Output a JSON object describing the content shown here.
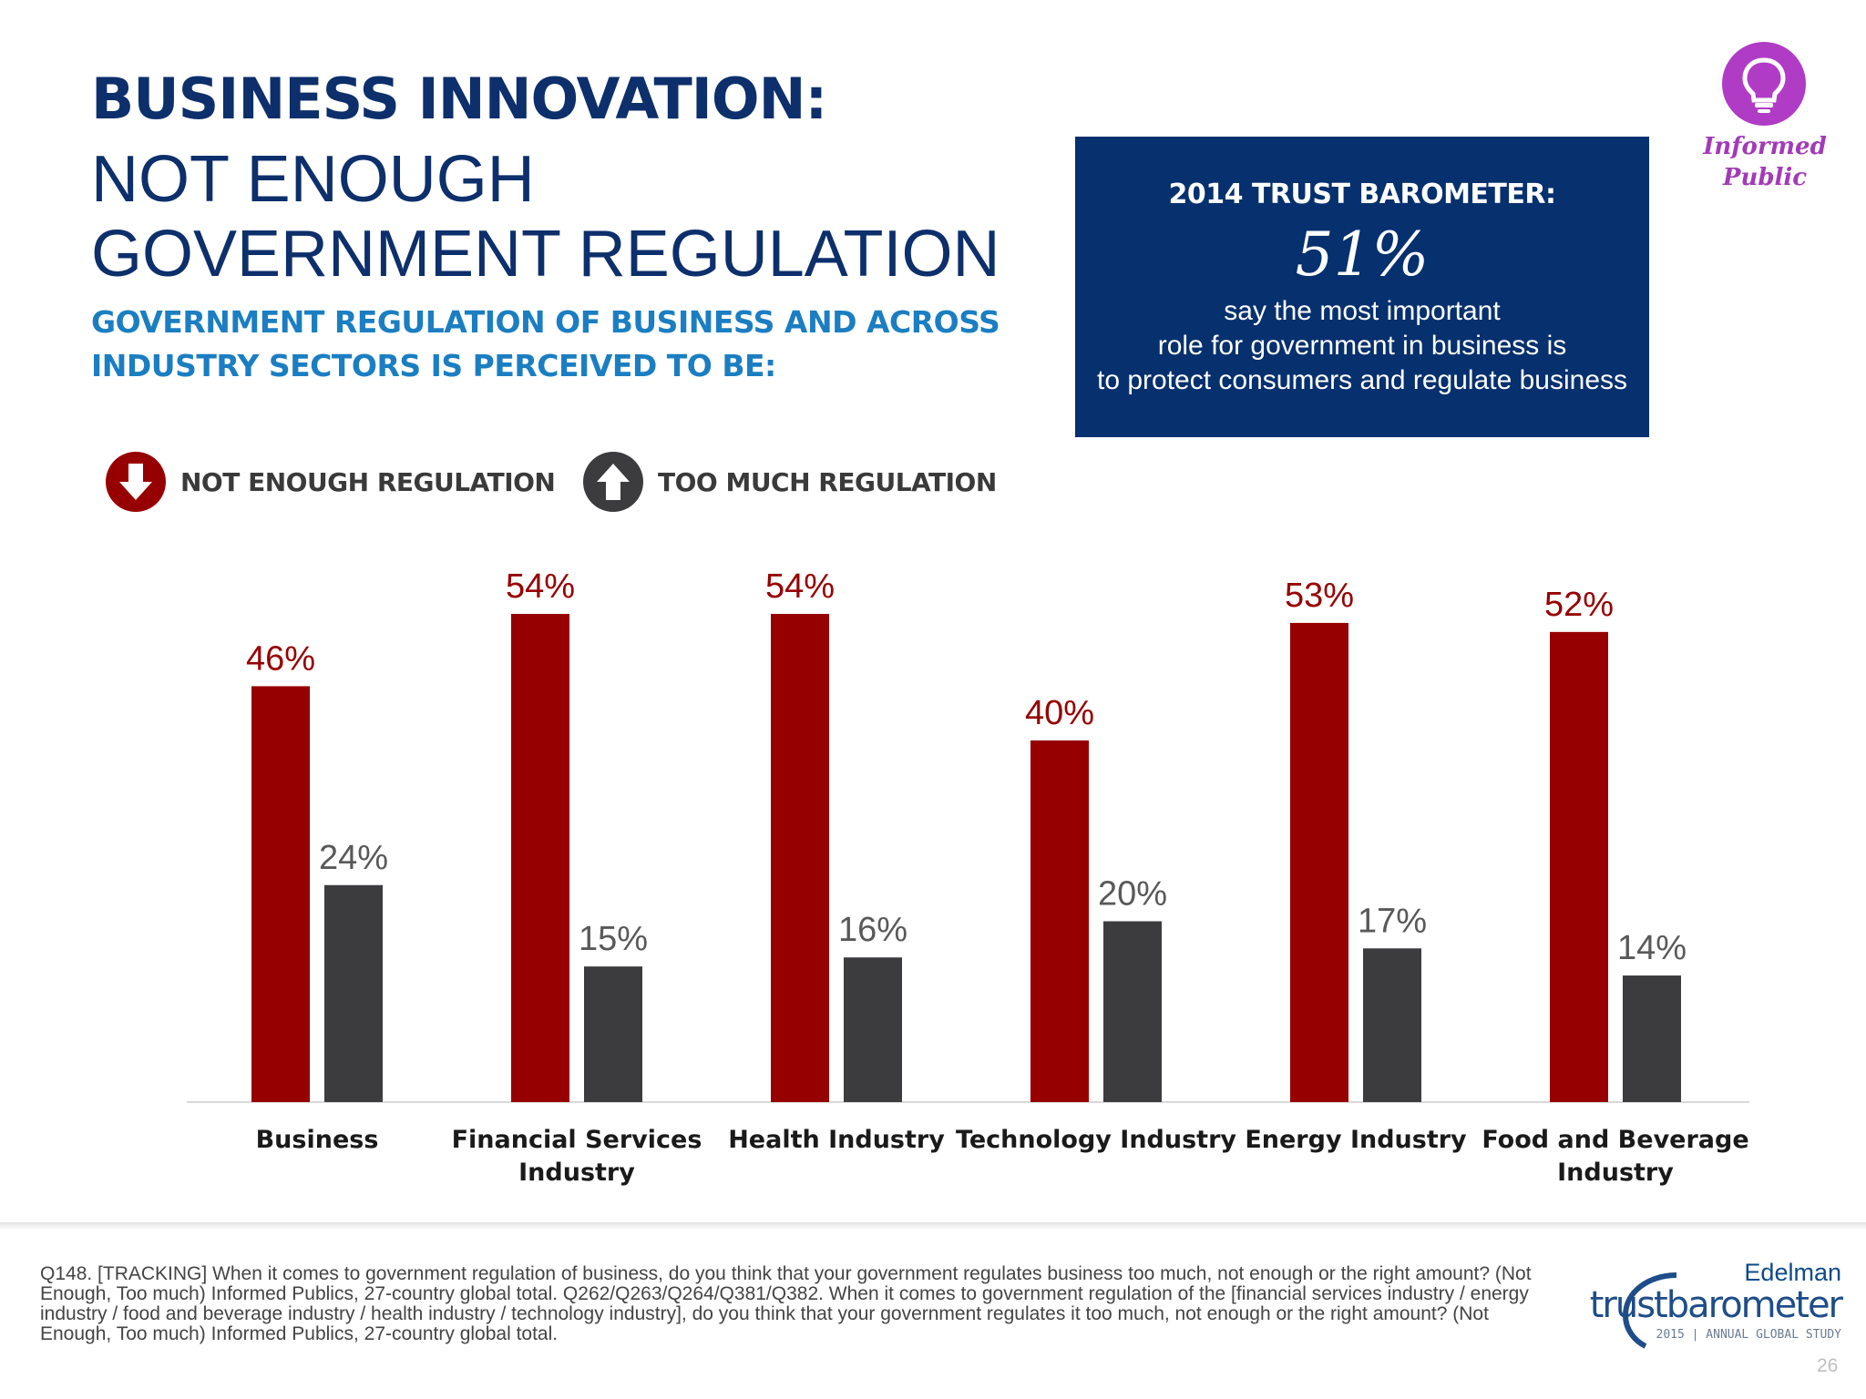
{
  "header": {
    "title_line1": "BUSINESS INNOVATION:",
    "title_line2": "NOT ENOUGH",
    "title_line3": "GOVERNMENT REGULATION",
    "subtitle_line1": "GOVERNMENT REGULATION OF BUSINESS AND ACROSS",
    "subtitle_line2": "INDUSTRY SECTORS IS PERCEIVED TO BE:"
  },
  "callout": {
    "heading": "2014 TRUST BAROMETER:",
    "value": "51%",
    "line1": "say the most important",
    "line2": "role for government in business is",
    "line3": "to protect consumers and regulate business"
  },
  "badge": {
    "line1": "Informed",
    "line2": "Public",
    "icon": "lightbulb-icon",
    "color": "#b03cc6"
  },
  "legend": {
    "not_enough": {
      "label": "NOT ENOUGH REGULATION",
      "icon": "arrow-down-icon"
    },
    "too_much": {
      "label": "TOO MUCH REGULATION",
      "icon": "arrow-up-icon"
    }
  },
  "chart_data": {
    "type": "bar",
    "categories": [
      [
        "Business"
      ],
      [
        "Financial Services",
        "Industry"
      ],
      [
        "Health Industry"
      ],
      [
        "Technology Industry"
      ],
      [
        "Energy Industry"
      ],
      [
        "Food and Beverage",
        "Industry"
      ]
    ],
    "series": [
      {
        "name": "NOT ENOUGH REGULATION",
        "values": [
          46,
          54,
          54,
          40,
          53,
          52
        ],
        "color": "#970000"
      },
      {
        "name": "TOO MUCH REGULATION",
        "values": [
          24,
          15,
          16,
          20,
          17,
          14
        ],
        "color": "#3c3b3e"
      }
    ],
    "value_suffix": "%",
    "ylim": [
      0,
      54
    ],
    "grid": false
  },
  "footnote": "Q148. [TRACKING] When it comes to government regulation of business, do you think that your government regulates business too much, not enough or the right amount? (Not Enough, Too much) Informed Publics, 27-country global total. Q262/Q263/Q264/Q381/Q382. When it comes to government regulation of the [financial services industry / energy industry / food and beverage industry / health industry / technology industry], do you think that your government regulates it too much, not enough or the right amount? (Not Enough, Too much) Informed Publics, 27-country global total.",
  "logo": {
    "brand": "Edelman",
    "product": "trustbarometer",
    "study": "2015 | ANNUAL GLOBAL STUDY"
  },
  "page_number": "26"
}
